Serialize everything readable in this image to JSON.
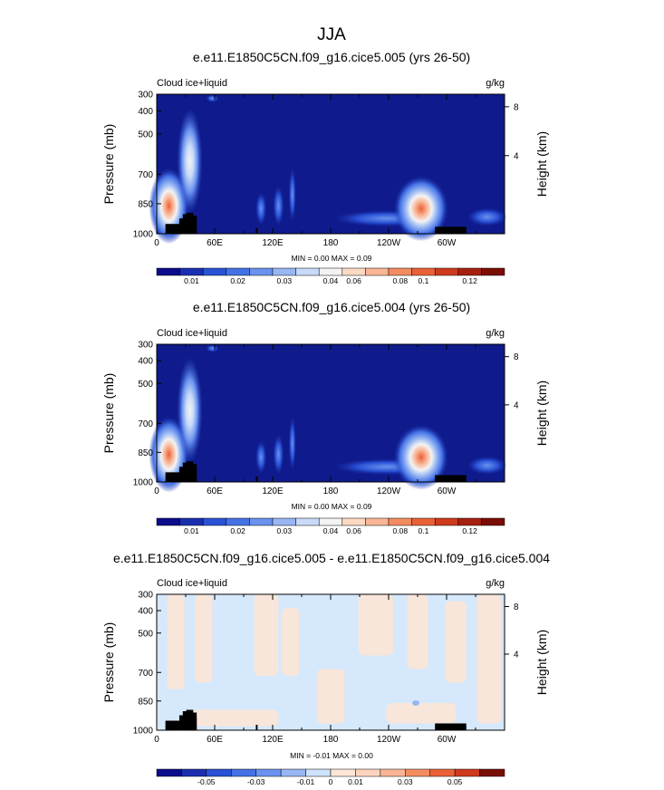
{
  "figure_title": "JJA",
  "chart_data": [
    {
      "type": "heatmap",
      "title": "e.e11.E1850C5CN.f09_g16.cice5.005 (yrs 26-50)",
      "field_label": "Cloud ice+liquid",
      "units": "g/kg",
      "ylabel": "Pressure (mb)",
      "right_ylabel": "Height (km)",
      "x_ticks": [
        "0",
        "60E",
        "120E",
        "180",
        "120W",
        "60W"
      ],
      "y_ticks": [
        "300",
        "400",
        "500",
        "700",
        "850",
        "1000"
      ],
      "right_ticks": [
        "8",
        "4"
      ],
      "stats": "MIN =   0.00  MAX =   0.09",
      "colorbar_labels": [
        "0.01",
        "0.02",
        "0.03",
        "0.04",
        "0.06",
        "0.08",
        "0.1",
        "0.12"
      ],
      "colorbar_colors": [
        "#0c0c8c",
        "#1a2fb0",
        "#2a52d6",
        "#4472e6",
        "#6a92ee",
        "#97b6f3",
        "#c8daf8",
        "#f3f3f3",
        "#fcd9c3",
        "#f9b595",
        "#f48c62",
        "#ea6137",
        "#cf3a1d",
        "#a6200f",
        "#7a0d06"
      ],
      "background_color": "#0f1b8c",
      "max_value": 0.09
    },
    {
      "type": "heatmap",
      "title": "e.e11.E1850C5CN.f09_g16.cice5.004 (yrs 26-50)",
      "field_label": "Cloud ice+liquid",
      "units": "g/kg",
      "ylabel": "Pressure (mb)",
      "right_ylabel": "Height (km)",
      "x_ticks": [
        "0",
        "60E",
        "120E",
        "180",
        "120W",
        "60W"
      ],
      "y_ticks": [
        "300",
        "400",
        "500",
        "700",
        "850",
        "1000"
      ],
      "right_ticks": [
        "8",
        "4"
      ],
      "stats": "MIN =   0.00  MAX =   0.09",
      "colorbar_labels": [
        "0.01",
        "0.02",
        "0.03",
        "0.04",
        "0.06",
        "0.08",
        "0.1",
        "0.12"
      ],
      "colorbar_colors": [
        "#0c0c8c",
        "#1a2fb0",
        "#2a52d6",
        "#4472e6",
        "#6a92ee",
        "#97b6f3",
        "#c8daf8",
        "#f3f3f3",
        "#fcd9c3",
        "#f9b595",
        "#f48c62",
        "#ea6137",
        "#cf3a1d",
        "#a6200f",
        "#7a0d06"
      ],
      "background_color": "#0f1b8c",
      "max_value": 0.09
    },
    {
      "type": "heatmap",
      "title": "e.e11.E1850C5CN.f09_g16.cice5.005 - e.e11.E1850C5CN.f09_g16.cice5.004",
      "field_label": "Cloud ice+liquid",
      "units": "g/kg",
      "ylabel": "Pressure (mb)",
      "right_ylabel": "Height (km)",
      "x_ticks": [
        "0",
        "60E",
        "120E",
        "180",
        "120W",
        "60W"
      ],
      "y_ticks": [
        "300",
        "400",
        "500",
        "700",
        "850",
        "1000"
      ],
      "right_ticks": [
        "8",
        "4"
      ],
      "stats": "MIN =  -0.01  MAX =   0.00",
      "colorbar_labels": [
        "-0.05",
        "-0.03",
        "-0.01",
        "0",
        "0.01",
        "0.03",
        "0.05"
      ],
      "colorbar_colors": [
        "#0c0c8c",
        "#1a2fb0",
        "#2a52d6",
        "#4472e6",
        "#6a92ee",
        "#97b6f3",
        "#cfe2fb",
        "#fde6d6",
        "#fcd4bd",
        "#f9b595",
        "#f48c62",
        "#ea6137",
        "#cf3a1d",
        "#7a0d06"
      ],
      "background_color": "#d6e8fb",
      "max_value": 0.0
    }
  ]
}
